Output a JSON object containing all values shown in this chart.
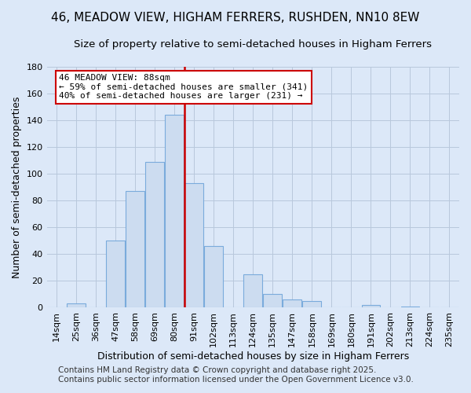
{
  "title": "46, MEADOW VIEW, HIGHAM FERRERS, RUSHDEN, NN10 8EW",
  "subtitle": "Size of property relative to semi-detached houses in Higham Ferrers",
  "xlabel": "Distribution of semi-detached houses by size in Higham Ferrers",
  "ylabel": "Number of semi-detached properties",
  "bin_labels": [
    "14sqm",
    "25sqm",
    "36sqm",
    "47sqm",
    "58sqm",
    "69sqm",
    "80sqm",
    "91sqm",
    "102sqm",
    "113sqm",
    "124sqm",
    "135sqm",
    "147sqm",
    "158sqm",
    "169sqm",
    "180sqm",
    "191sqm",
    "202sqm",
    "213sqm",
    "224sqm",
    "235sqm"
  ],
  "bar_heights": [
    0,
    3,
    0,
    50,
    87,
    109,
    144,
    93,
    46,
    0,
    25,
    10,
    6,
    5,
    0,
    0,
    2,
    0,
    1,
    0,
    0
  ],
  "bar_color": "#ccdcf0",
  "bar_edge_color": "#7aabdc",
  "vline_color": "#cc0000",
  "vline_x_index": 7,
  "ylim": [
    0,
    180
  ],
  "yticks": [
    0,
    20,
    40,
    60,
    80,
    100,
    120,
    140,
    160,
    180
  ],
  "annotation_title": "46 MEADOW VIEW: 88sqm",
  "annotation_line1": "← 59% of semi-detached houses are smaller (341)",
  "annotation_line2": "40% of semi-detached houses are larger (231) →",
  "footer1": "Contains HM Land Registry data © Crown copyright and database right 2025.",
  "footer2": "Contains public sector information licensed under the Open Government Licence v3.0.",
  "background_color": "#dce8f8",
  "grid_color": "#b8c8dc",
  "title_fontsize": 11,
  "subtitle_fontsize": 9.5,
  "xlabel_fontsize": 9,
  "ylabel_fontsize": 9,
  "tick_fontsize": 8,
  "footer_fontsize": 7.5,
  "annotation_fontsize": 8
}
